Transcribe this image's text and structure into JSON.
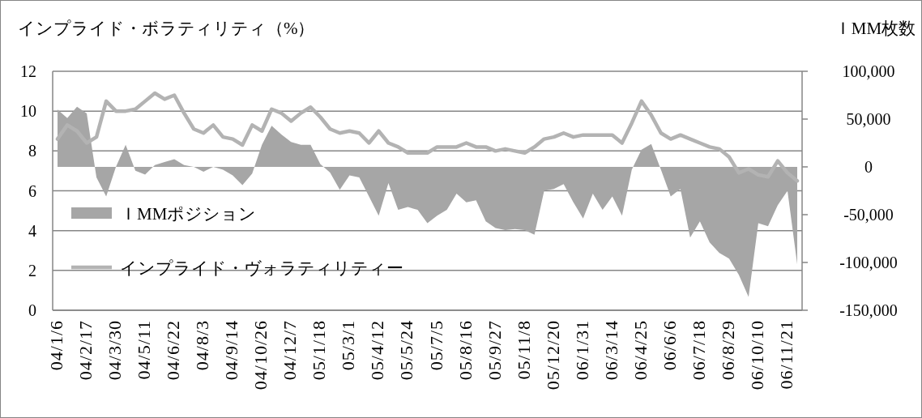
{
  "chart_data": {
    "type": "line",
    "ylabel": "インプライド・ボラティリティ（%）",
    "y2label": "ＩMM枚数",
    "categories": [
      "04/1/6",
      null,
      null,
      "04/2/17",
      null,
      null,
      "04/3/30",
      null,
      null,
      "04/5/11",
      null,
      null,
      "04/6/22",
      null,
      null,
      "04/8/3",
      null,
      null,
      "04/9/14",
      null,
      null,
      "04/10/26",
      null,
      null,
      "04/12/7",
      null,
      null,
      "05/1/18",
      null,
      null,
      "05/3/1",
      null,
      null,
      "05/4/12",
      null,
      null,
      "05/5/24",
      null,
      null,
      "05/7/5",
      null,
      null,
      "05/8/16",
      null,
      null,
      "05/9/27",
      null,
      null,
      "05/11/8",
      null,
      null,
      "05/12/20",
      null,
      null,
      "06/1/31",
      null,
      null,
      "06/3/14",
      null,
      null,
      "06/4/25",
      null,
      null,
      "06/6/6",
      null,
      null,
      "06/7/18",
      null,
      null,
      "06/8/29",
      null,
      null,
      "06/10/10",
      null,
      null,
      "06/11/21",
      null
    ],
    "series": [
      {
        "name": "ＩMMポジション",
        "type": "area",
        "axis": "y2",
        "color": "#a6a6a6",
        "values": [
          60000,
          51000,
          63000,
          56000,
          -11000,
          -31000,
          0,
          23000,
          -4000,
          -8000,
          2000,
          5000,
          8000,
          2000,
          0,
          -5000,
          0,
          -3000,
          -9000,
          -19000,
          -7000,
          23000,
          43000,
          34000,
          26000,
          23000,
          23000,
          3000,
          -6000,
          -24000,
          -9000,
          -11000,
          -31000,
          -51000,
          -17000,
          -45000,
          -42000,
          -45000,
          -59000,
          -51000,
          -45000,
          -28000,
          -37000,
          -35000,
          -57000,
          -64000,
          -66000,
          -65000,
          -66000,
          -71000,
          -25000,
          -23000,
          -18000,
          -37000,
          -54000,
          -28000,
          -45000,
          -31000,
          -51000,
          -3000,
          18000,
          24000,
          -3000,
          -31000,
          -23000,
          -74000,
          -57000,
          -79000,
          -90000,
          -96000,
          -113000,
          -136000,
          -59000,
          -62000,
          -40000,
          -25000,
          -102000
        ]
      },
      {
        "name": "インプライド・ヴォラティリティー",
        "color": "#b3b3b3",
        "values": [
          8.6,
          9.3,
          9.0,
          8.4,
          8.7,
          10.5,
          10.0,
          10.0,
          10.1,
          10.5,
          10.9,
          10.6,
          10.8,
          9.9,
          9.1,
          8.9,
          9.3,
          8.7,
          8.6,
          8.3,
          9.3,
          9.0,
          10.1,
          9.9,
          9.5,
          9.9,
          10.2,
          9.7,
          9.1,
          8.9,
          9.0,
          8.9,
          8.4,
          9.0,
          8.4,
          8.2,
          7.9,
          7.9,
          7.9,
          8.2,
          8.2,
          8.2,
          8.4,
          8.2,
          8.2,
          8.0,
          8.1,
          8.0,
          7.9,
          8.2,
          8.6,
          8.7,
          8.9,
          8.7,
          8.8,
          8.8,
          8.8,
          8.8,
          8.4,
          9.4,
          10.5,
          9.8,
          8.9,
          8.6,
          8.8,
          8.6,
          8.4,
          8.2,
          8.1,
          7.7,
          6.9,
          7.1,
          6.8,
          6.7,
          7.5,
          6.9,
          6.5
        ]
      }
    ],
    "ylim": [
      0,
      12
    ],
    "yticks": [
      0,
      2,
      4,
      6,
      8,
      10,
      12
    ],
    "y2lim": [
      -150000,
      100000
    ],
    "y2ticks": [
      {
        "value": -150000,
        "label": "-150,000"
      },
      {
        "value": -100000,
        "label": "-100,000"
      },
      {
        "value": -50000,
        "label": "-50,000"
      },
      {
        "value": 0,
        "label": "0"
      },
      {
        "value": 50000,
        "label": "50,000"
      },
      {
        "value": 100000,
        "label": "100,000"
      }
    ],
    "grid": "y",
    "legend": "bottom left"
  }
}
